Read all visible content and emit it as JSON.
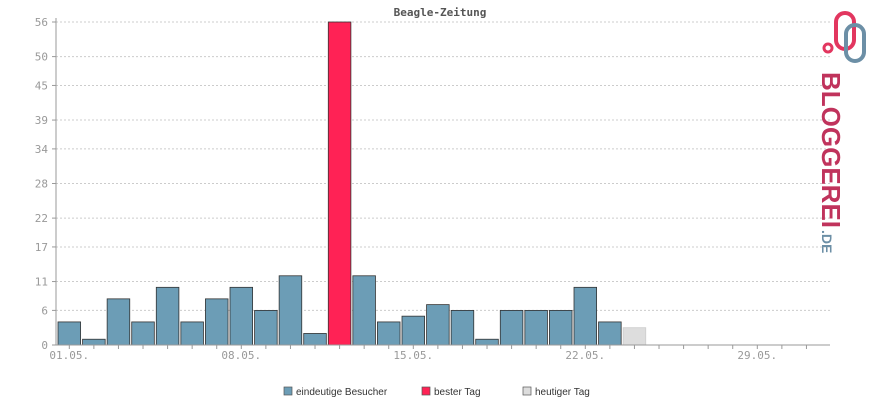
{
  "chart_data": {
    "type": "bar",
    "title": "Beagle-Zeitung",
    "ylim": [
      0,
      56
    ],
    "yticks": [
      0,
      6,
      11,
      17,
      22,
      28,
      34,
      39,
      45,
      50,
      56
    ],
    "x_tick_labels": [
      "01.05.",
      "08.05.",
      "15.05.",
      "22.05.",
      "29.05."
    ],
    "days": 31,
    "values": [
      4,
      1,
      8,
      4,
      10,
      4,
      8,
      10,
      6,
      12,
      2,
      56,
      12,
      4,
      5,
      7,
      6,
      1,
      6,
      6,
      6,
      10,
      4,
      3,
      0,
      0,
      0,
      0,
      0,
      0,
      0
    ],
    "best_day_index": 11,
    "today_index": 23,
    "grid": true,
    "colors": {
      "visitors": "#6c9db6",
      "best": "#ff2255",
      "today": "#dddddd",
      "grid": "#cccccc",
      "axis": "#999999"
    },
    "legend": [
      {
        "key": "visitors",
        "label": "eindeutige Besucher"
      },
      {
        "key": "best",
        "label": "bester Tag"
      },
      {
        "key": "today",
        "label": "heutiger Tag"
      }
    ],
    "legend_position": "bottom"
  },
  "logo": {
    "text": "BLOGGEREI",
    "suffix": ".DE",
    "icon": "chain-link-icon"
  }
}
